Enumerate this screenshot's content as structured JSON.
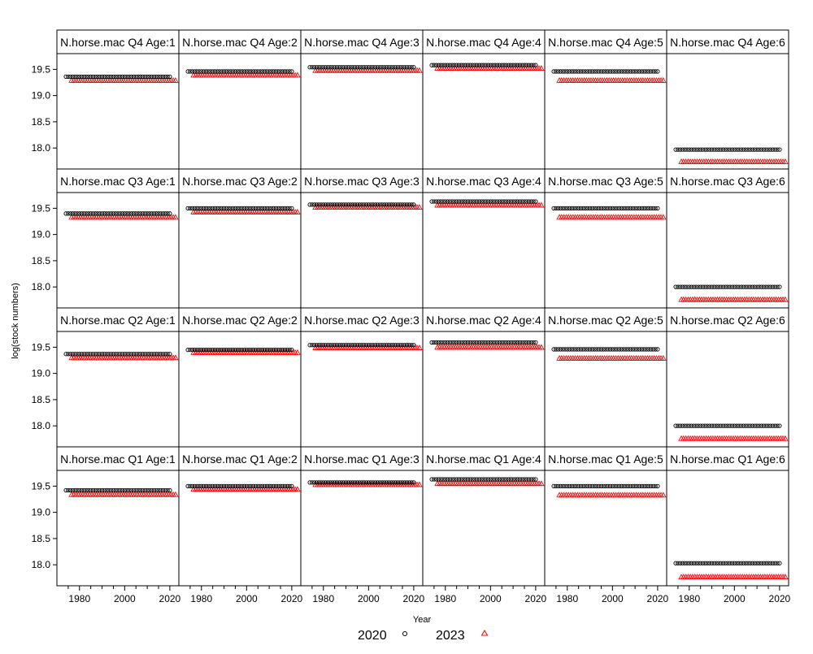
{
  "chart_data": {
    "type": "scatter",
    "layout": "lattice 6 columns x 4 rows",
    "xlabel": "Year",
    "ylabel": "log(stock numbers)",
    "x_ticks": [
      1980,
      2000,
      2020
    ],
    "y_ticks": [
      "19.5",
      "19.0",
      "18.5",
      "18.0"
    ],
    "xlim": [
      1970,
      2024
    ],
    "ylim": [
      17.6,
      19.8
    ],
    "x_range": [
      1974,
      2020
    ],
    "series": [
      {
        "name": "2020",
        "marker": "circle",
        "color": "#000000"
      },
      {
        "name": "2023",
        "marker": "triangle",
        "color": "#ff0000"
      }
    ],
    "x_start_2023_offset": 0,
    "panels": [
      {
        "label": "N.horse.mac Q4 Age:1",
        "values_2020": 19.36,
        "values_2023": 19.29
      },
      {
        "label": "N.horse.mac Q4 Age:2",
        "values_2020": 19.46,
        "values_2023": 19.39
      },
      {
        "label": "N.horse.mac Q4 Age:3",
        "values_2020": 19.54,
        "values_2023": 19.48
      },
      {
        "label": "N.horse.mac Q4 Age:4",
        "values_2020": 19.58,
        "values_2023": 19.52
      },
      {
        "label": "N.horse.mac Q4 Age:5",
        "values_2020": 19.46,
        "values_2023": 19.29
      },
      {
        "label": "N.horse.mac Q4 Age:6",
        "values_2020": 17.97,
        "values_2023": 17.74
      },
      {
        "label": "N.horse.mac Q3 Age:1",
        "values_2020": 19.4,
        "values_2023": 19.33
      },
      {
        "label": "N.horse.mac Q3 Age:2",
        "values_2020": 19.5,
        "values_2023": 19.43
      },
      {
        "label": "N.horse.mac Q3 Age:3",
        "values_2020": 19.57,
        "values_2023": 19.52
      },
      {
        "label": "N.horse.mac Q3 Age:4",
        "values_2020": 19.63,
        "values_2023": 19.56
      },
      {
        "label": "N.horse.mac Q3 Age:5",
        "values_2020": 19.5,
        "values_2023": 19.33
      },
      {
        "label": "N.horse.mac Q3 Age:6",
        "values_2020": 18.0,
        "values_2023": 17.76
      },
      {
        "label": "N.horse.mac Q2 Age:1",
        "values_2020": 19.37,
        "values_2023": 19.3
      },
      {
        "label": "N.horse.mac Q2 Age:2",
        "values_2020": 19.45,
        "values_2023": 19.4
      },
      {
        "label": "N.horse.mac Q2 Age:3",
        "values_2020": 19.54,
        "values_2023": 19.49
      },
      {
        "label": "N.horse.mac Q2 Age:4",
        "values_2020": 19.59,
        "values_2023": 19.5
      },
      {
        "label": "N.horse.mac Q2 Age:5",
        "values_2020": 19.46,
        "values_2023": 19.29
      },
      {
        "label": "N.horse.mac Q2 Age:6",
        "values_2020": 18.0,
        "values_2023": 17.76
      },
      {
        "label": "N.horse.mac Q1 Age:1",
        "values_2020": 19.42,
        "values_2023": 19.34
      },
      {
        "label": "N.horse.mac Q1 Age:2",
        "values_2020": 19.5,
        "values_2023": 19.44
      },
      {
        "label": "N.horse.mac Q1 Age:3",
        "values_2020": 19.57,
        "values_2023": 19.53
      },
      {
        "label": "N.horse.mac Q1 Age:4",
        "values_2020": 19.63,
        "values_2023": 19.55
      },
      {
        "label": "N.horse.mac Q1 Age:5",
        "values_2020": 19.5,
        "values_2023": 19.33
      },
      {
        "label": "N.horse.mac Q1 Age:6",
        "values_2020": 18.03,
        "values_2023": 17.77
      }
    ],
    "legend": {
      "placement": "bottom",
      "entries": [
        "2020",
        "2023"
      ]
    }
  }
}
